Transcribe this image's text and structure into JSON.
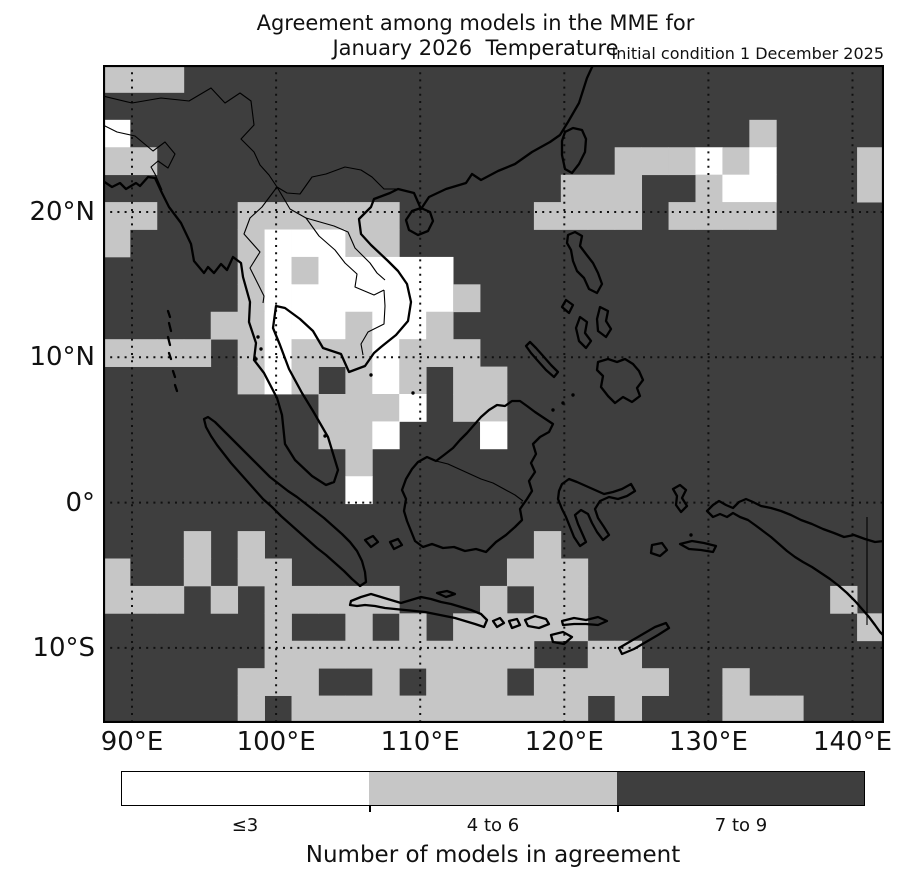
{
  "figure": {
    "title_line1": "Agreement among models in the MME for",
    "title_line2": "January 2026  Temperature",
    "annotation": "Initial condition 1 December 2025"
  },
  "axes": {
    "x_ticks": [
      {
        "label": "90°E",
        "lon": 90
      },
      {
        "label": "100°E",
        "lon": 100
      },
      {
        "label": "110°E",
        "lon": 110
      },
      {
        "label": "120°E",
        "lon": 120
      },
      {
        "label": "130°E",
        "lon": 130
      },
      {
        "label": "140°E",
        "lon": 140
      }
    ],
    "y_ticks": [
      {
        "label": "20°N",
        "lat": 20
      },
      {
        "label": "10°N",
        "lat": 10
      },
      {
        "label": "0°",
        "lat": 0
      },
      {
        "label": "10°S",
        "lat": -10
      }
    ]
  },
  "colorbar": {
    "title": "Number of models in agreement",
    "categories": [
      {
        "value": "1",
        "label": "≤3",
        "color": "#ffffff"
      },
      {
        "value": "2",
        "label": "4 to 6",
        "color": "#c6c6c6"
      },
      {
        "value": "3",
        "label": "7 to 9",
        "color": "#3e3e3e"
      }
    ]
  },
  "chart_data": {
    "type": "heatmap",
    "title": "Agreement among models in the MME for January 2026  Temperature",
    "subtitle": "Initial condition 1 December 2025",
    "legend_title": "Number of models in agreement",
    "projection": "equirectangular map, Southeast Asia / Maritime Continent",
    "lon_range": [
      88.1,
      142.5
    ],
    "lat_range": [
      -15.1,
      30.1
    ],
    "cell_size_deg": 1.875,
    "gridlines": {
      "lons": [
        90,
        100,
        110,
        120,
        130,
        140
      ],
      "lats": [
        20,
        10,
        0,
        -10
      ],
      "style": "dotted"
    },
    "classes": {
      "1": "≤3 models agree (white)",
      "2": "4 to 6 models agree (light gray)",
      "3": "7 to 9 models agree (dark gray)"
    },
    "grid_rows_north_to_south": [
      "22233333333333333333333333333",
      "33333333333333333333333333333",
      "13333333333333333333333323333",
      "22333333333333333332221213332",
      "33333333333333333222332113332",
      "22333222222333332222322223333",
      "23333211122333333333333333333",
      "33333212111113333333333333333",
      "33333211111112333333333333333",
      "33332211121123333333333333333",
      "22223212221222333333333333333",
      "33333212321232233333333333333",
      "33333333222132233333333333333",
      "33333333221333133333333333333",
      "33333333323333333333333333333",
      "33333333313333333333333333333",
      "33333333333333333333333333333",
      "33323233333333332333333333333",
      "23323223333333322233333333333",
      "22232322222333232233333333323",
      "33333323323232222233333333332",
      "33333322222222223322333333333",
      "33333222332322232222233233333",
      "33333232222222222232333222333"
    ]
  }
}
